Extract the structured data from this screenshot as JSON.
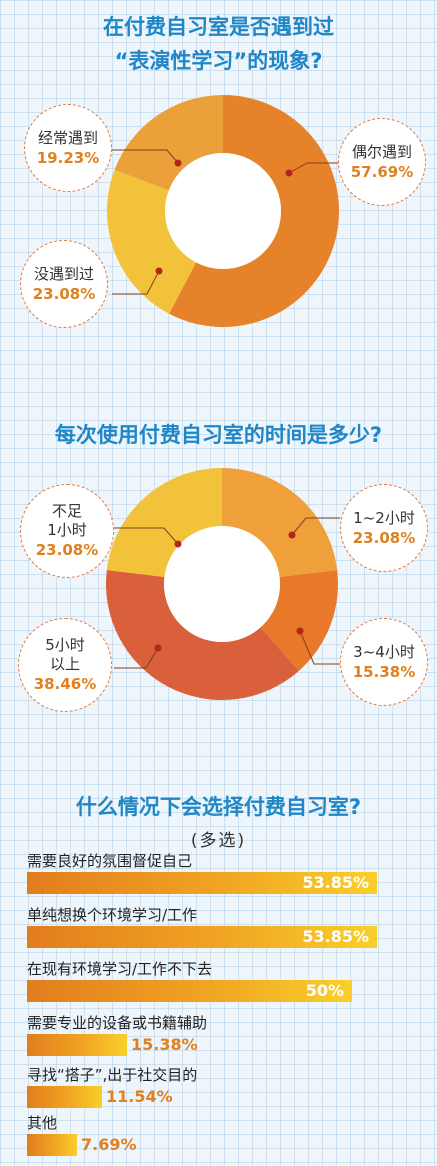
{
  "chart_data": [
    {
      "type": "pie",
      "title_line1": "在付费自习室是否遇到过",
      "title_line2": "“表演性学习”的现象?",
      "slices": [
        {
          "label": "偶尔遇到",
          "value": 57.69,
          "display": "57.69%",
          "color": "#e5822a"
        },
        {
          "label": "没遇到过",
          "value": 23.08,
          "display": "23.08%",
          "color": "#f2c23a"
        },
        {
          "label": "经常遇到",
          "value": 19.23,
          "display": "19.23%",
          "color": "#eca03a"
        }
      ]
    },
    {
      "type": "pie",
      "title": "每次使用付费自习室的时间是多少?",
      "slices": [
        {
          "label": "1~2小时",
          "value": 23.08,
          "display": "23.08%",
          "color": "#f0a03a"
        },
        {
          "label": "3~4小时",
          "value": 15.38,
          "display": "15.38%",
          "color": "#e8782a"
        },
        {
          "label": "5小时以上",
          "label_line1": "5小时",
          "label_line2": "以上",
          "value": 38.46,
          "display": "38.46%",
          "color": "#d9603a"
        },
        {
          "label": "不足1小时",
          "label_line1": "不足",
          "label_line2": "1小时",
          "value": 23.08,
          "display": "23.08%",
          "color": "#f2c23a"
        }
      ]
    },
    {
      "type": "bar",
      "title": "什么情况下会选择付费自习室?",
      "subtitle": "(多选)",
      "categories": [
        "需要良好的氛围督促自己",
        "单纯想换个环境学习/工作",
        "在现有环境学习/工作不下去",
        "需要专业的设备或书籍辅助",
        "寻找“搭子”,出于社交目的",
        "其他"
      ],
      "values": [
        53.85,
        53.85,
        50,
        15.38,
        11.54,
        7.69
      ],
      "displays": [
        "53.85%",
        "53.85%",
        "50%",
        "15.38%",
        "11.54%",
        "7.69%"
      ],
      "xlim": [
        0,
        60
      ]
    }
  ]
}
